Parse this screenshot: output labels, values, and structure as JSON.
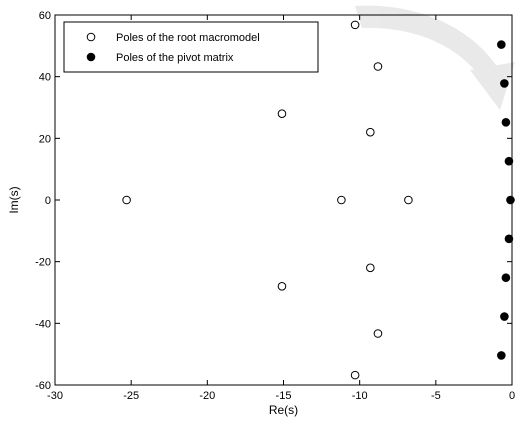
{
  "chart_data": {
    "type": "scatter",
    "xlabel": "Re(s)",
    "ylabel": "Im(s)",
    "xlim": [
      -30,
      0
    ],
    "ylim": [
      -60,
      60
    ],
    "xticks": [
      -30,
      -25,
      -20,
      -15,
      -10,
      -5,
      0
    ],
    "yticks": [
      -60,
      -40,
      -20,
      0,
      20,
      40,
      60
    ],
    "grid": false,
    "legend_position": "top-left",
    "series": [
      {
        "name": "Poles of the root macromodel",
        "marker": "open-circle",
        "color": "#000000",
        "points": [
          {
            "x": -10.3,
            "y": 56.8
          },
          {
            "x": -8.8,
            "y": 43.3
          },
          {
            "x": -15.1,
            "y": 28.0
          },
          {
            "x": -9.3,
            "y": 22.0
          },
          {
            "x": -25.3,
            "y": 0.0
          },
          {
            "x": -11.2,
            "y": 0.0
          },
          {
            "x": -6.8,
            "y": 0.0
          },
          {
            "x": -9.3,
            "y": -22.0
          },
          {
            "x": -15.1,
            "y": -28.0
          },
          {
            "x": -8.8,
            "y": -43.3
          },
          {
            "x": -10.3,
            "y": -56.8
          }
        ]
      },
      {
        "name": "Poles of the pivot matrix",
        "marker": "filled-circle",
        "color": "#000000",
        "points": [
          {
            "x": -0.7,
            "y": 50.4
          },
          {
            "x": -0.5,
            "y": 37.8
          },
          {
            "x": -0.4,
            "y": 25.2
          },
          {
            "x": -0.2,
            "y": 12.6
          },
          {
            "x": -0.1,
            "y": 0.0
          },
          {
            "x": -0.2,
            "y": -12.6
          },
          {
            "x": -0.4,
            "y": -25.2
          },
          {
            "x": -0.5,
            "y": -37.8
          },
          {
            "x": -0.7,
            "y": -50.4
          }
        ]
      }
    ]
  }
}
